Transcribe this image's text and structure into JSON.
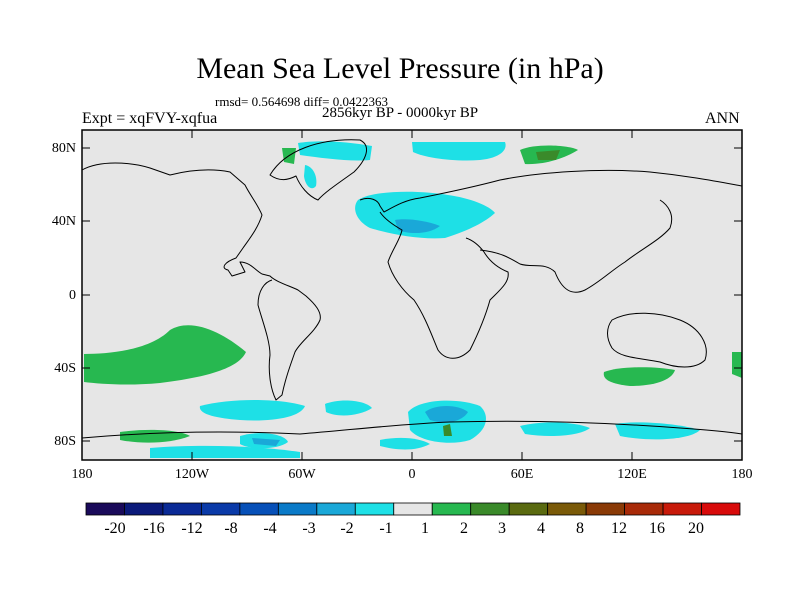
{
  "title": "Mean Sea Level Pressure (in hPa)",
  "stats": "rmsd= 0.564698 diff= 0.0422363",
  "period": "2856kyr BP - 0000kyr BP",
  "experiment": "Expt = xqFVY-xqfua",
  "season": "ANN",
  "lat_labels": [
    "80N",
    "40N",
    "0",
    "40S",
    "80S"
  ],
  "lon_labels": [
    "180",
    "120W",
    "60W",
    "0",
    "60E",
    "120E",
    "180"
  ],
  "colorbar": {
    "labels": [
      "-20",
      "-16",
      "-12",
      "-8",
      "-4",
      "-3",
      "-2",
      "-1",
      "1",
      "2",
      "3",
      "4",
      "8",
      "12",
      "16",
      "20"
    ],
    "colors": [
      "#1a0a5a",
      "#0b1a7a",
      "#0a2a96",
      "#0a3aa8",
      "#0750b8",
      "#0a7ac8",
      "#1aa8d8",
      "#1ee0e6",
      "#e6e6e6",
      "#27b850",
      "#3a8a2a",
      "#5a6a10",
      "#7a5a08",
      "#8a3a06",
      "#a82a08",
      "#c81a0a",
      "#d80a0a"
    ]
  },
  "colors": {
    "background": "#e6e6e6",
    "negative": "#1ee0e6",
    "negative_strong": "#1aa8d8",
    "positive": "#27b850",
    "positive_dark": "#3a8a2a"
  }
}
